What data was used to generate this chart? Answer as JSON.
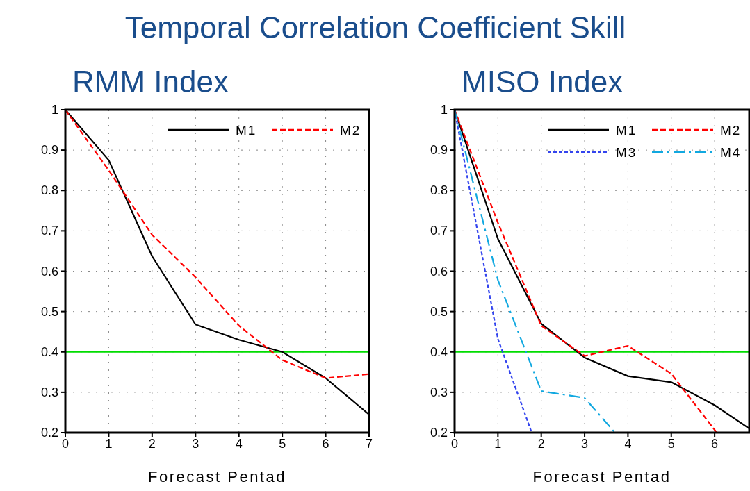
{
  "chart_data": [
    {
      "type": "line",
      "title": "RMM Index",
      "annotations": [
        "Temporal Correlation Coefficient Skill"
      ],
      "xlabel": "Forecast Pentad",
      "x": [
        0,
        1,
        2,
        3,
        4,
        5,
        6,
        7
      ],
      "xlim": [
        0,
        7
      ],
      "xticks": [
        0,
        1,
        2,
        3,
        4,
        5,
        6,
        7
      ],
      "ylim": [
        0.2,
        1
      ],
      "yticks": [
        0.2,
        0.3,
        0.4,
        0.5,
        0.6,
        0.7,
        0.8,
        0.9,
        1
      ],
      "grid": true,
      "legend": "top right",
      "marker": "none",
      "series": [
        {
          "name": "M1",
          "color": "#000000",
          "line_style": "solid",
          "values": [
            1,
            0.875,
            0.637,
            0.468,
            0.43,
            0.4,
            0.335,
            0.245
          ]
        },
        {
          "name": "M2",
          "color": "#ff0000",
          "line_style": "dashed",
          "values": [
            1,
            0.85,
            0.69,
            0.585,
            0.465,
            0.38,
            0.335,
            0.345
          ]
        }
      ],
      "ref_lines": [
        {
          "axis": "y",
          "value": 0.4,
          "color": "#00dd00"
        }
      ]
    },
    {
      "type": "line",
      "title": "MISO Index",
      "xlabel": "Forecast Pentad",
      "xlim": [
        0,
        6.8
      ],
      "xticks": [
        0,
        1,
        2,
        3,
        4,
        5,
        6
      ],
      "ylim": [
        0.2,
        1
      ],
      "yticks": [
        0.2,
        0.3,
        0.4,
        0.5,
        0.6,
        0.7,
        0.8,
        0.9,
        1
      ],
      "grid": true,
      "legend": "top right",
      "marker": "none",
      "series": [
        {
          "name": "M1",
          "color": "#000000",
          "line_style": "solid",
          "x": [
            0,
            1,
            2,
            3,
            4,
            5,
            6,
            6.8
          ],
          "values": [
            1,
            0.68,
            0.47,
            0.386,
            0.34,
            0.325,
            0.268,
            0.21
          ]
        },
        {
          "name": "M2",
          "color": "#ff0000",
          "line_style": "dashed",
          "x": [
            0,
            1,
            2,
            3,
            4,
            5,
            6.05
          ],
          "values": [
            1,
            0.72,
            0.465,
            0.39,
            0.415,
            0.346,
            0.2
          ]
        },
        {
          "name": "M3",
          "color": "#3344ee",
          "line_style": "dotted",
          "x": [
            0,
            1,
            1.78
          ],
          "values": [
            1,
            0.432,
            0.2
          ]
        },
        {
          "name": "M4",
          "color": "#11a8e0",
          "line_style": "dashdot",
          "x": [
            0,
            1,
            2,
            3,
            3.7
          ],
          "values": [
            1,
            0.578,
            0.303,
            0.286,
            0.2
          ]
        }
      ],
      "ref_lines": [
        {
          "axis": "y",
          "value": 0.4,
          "color": "#00dd00"
        }
      ]
    }
  ]
}
